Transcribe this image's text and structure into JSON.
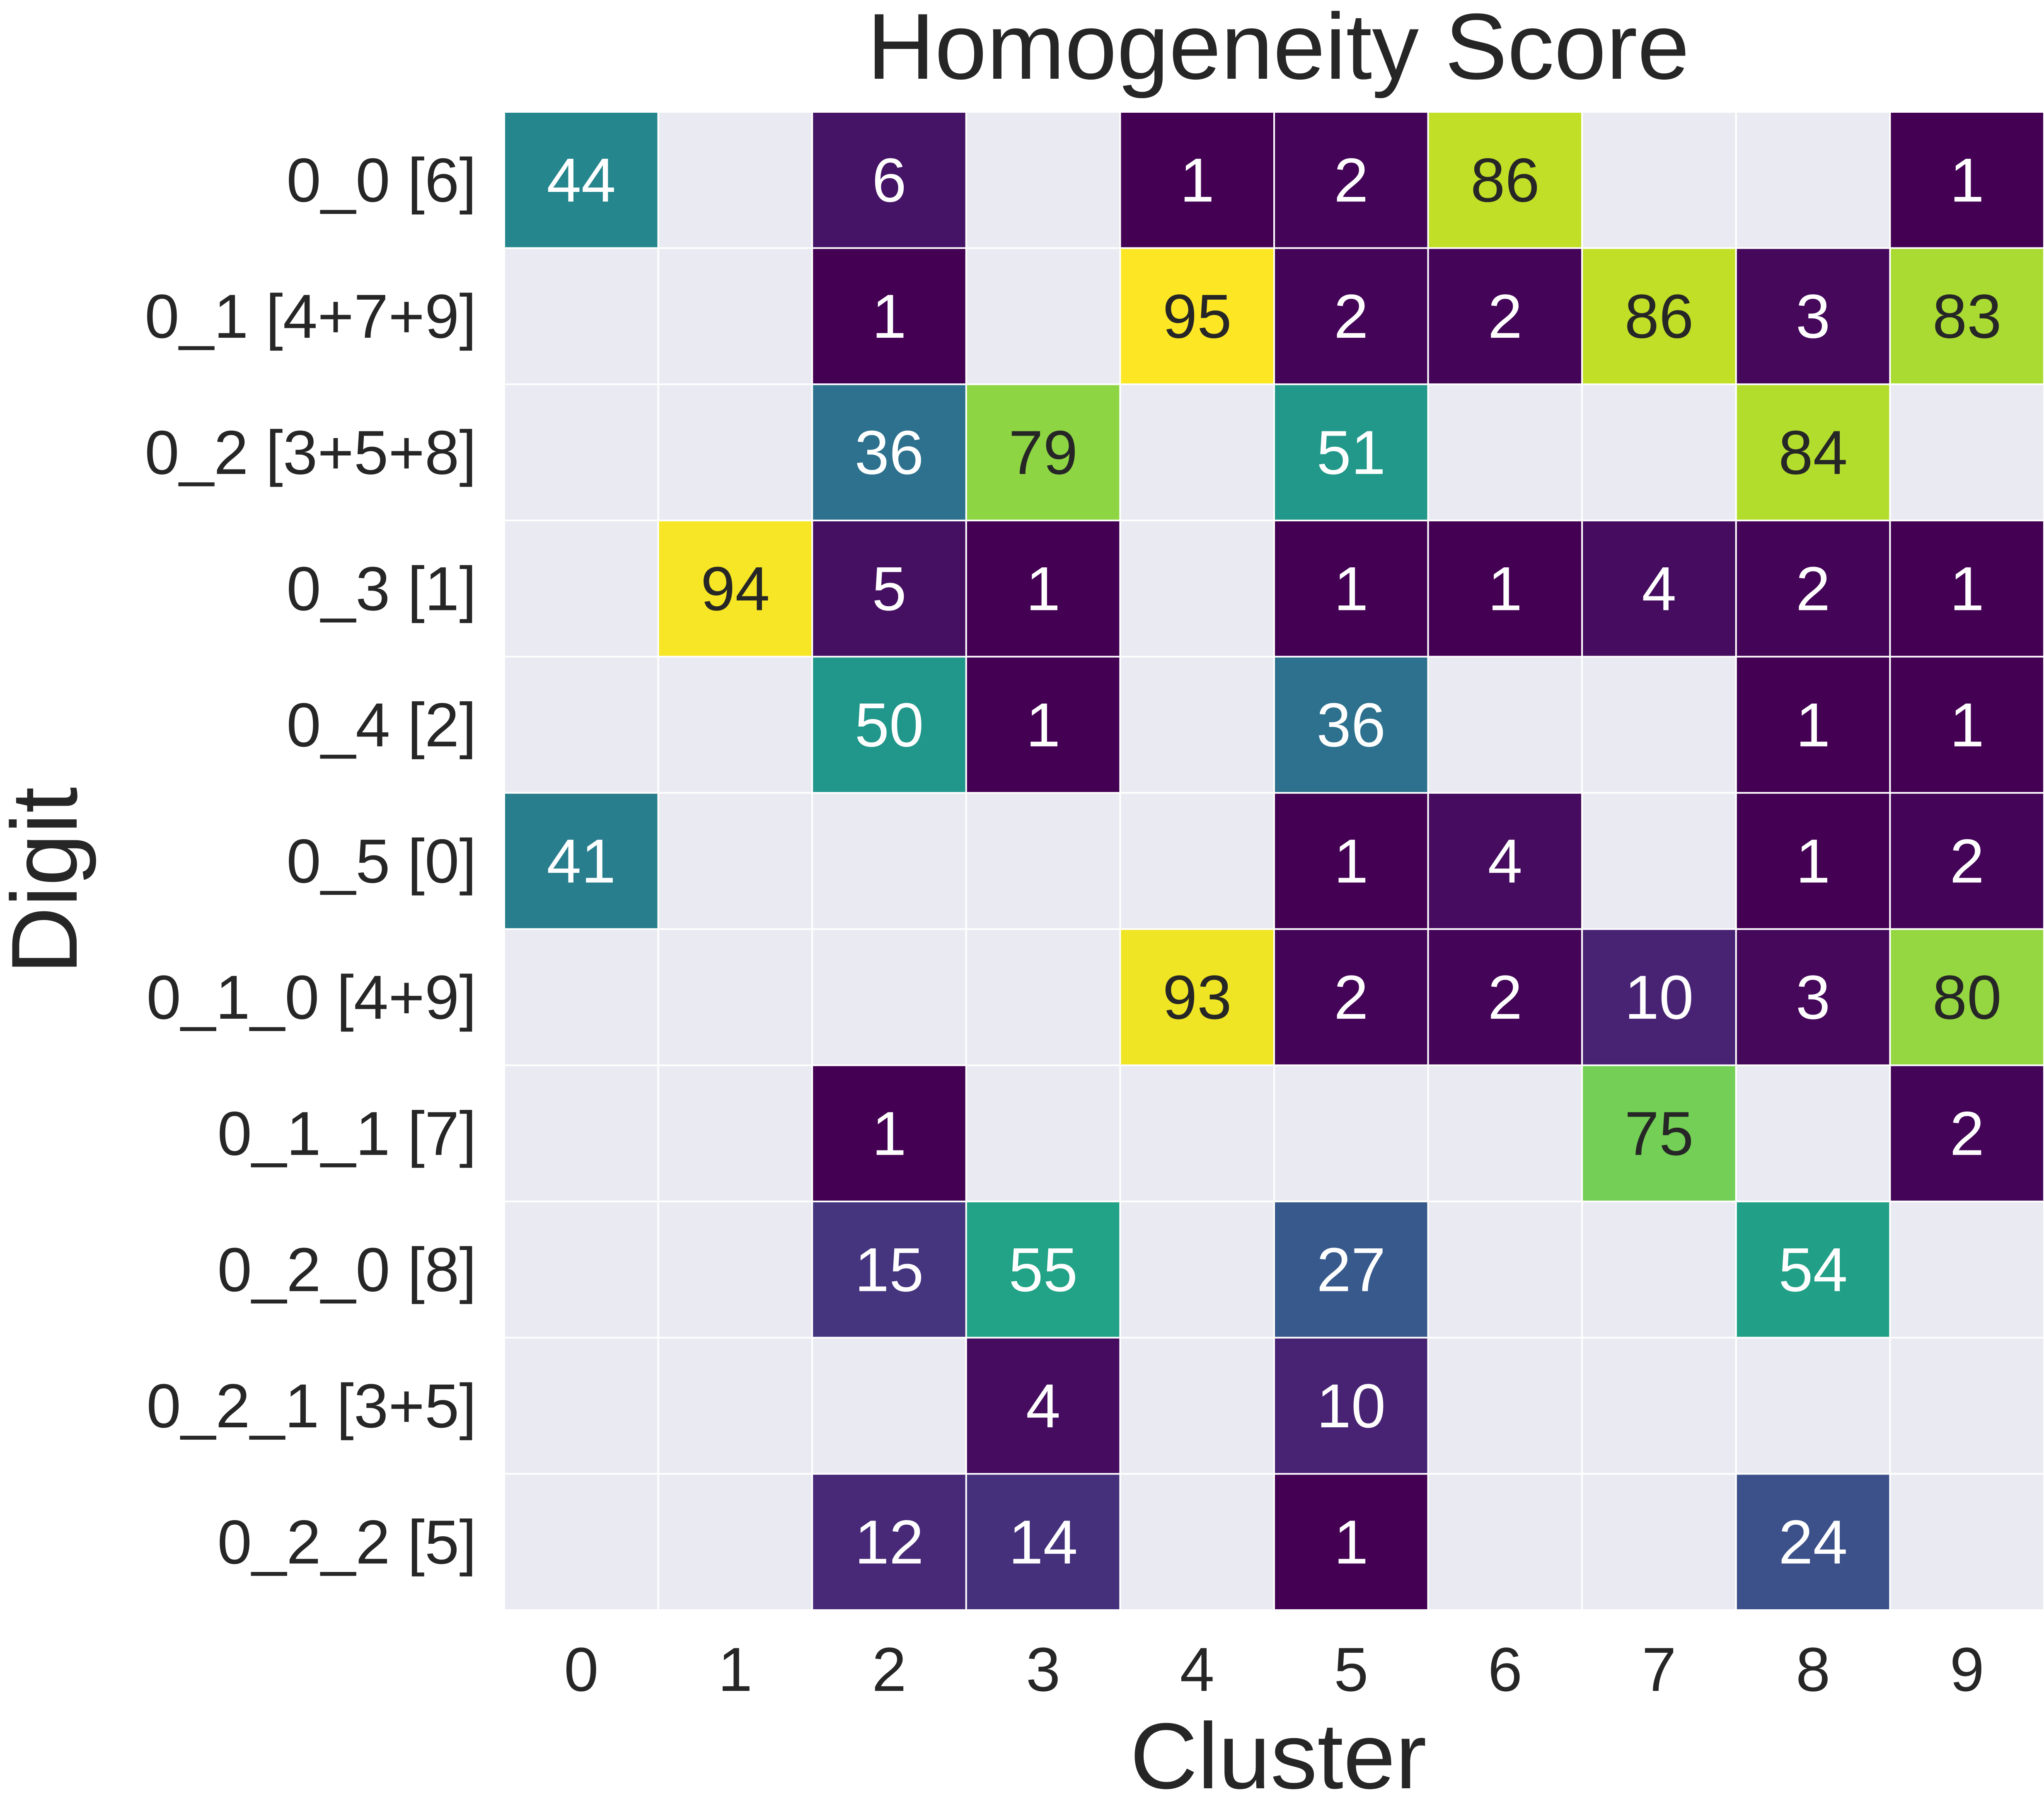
{
  "chart_data": {
    "type": "heatmap",
    "title": "Homogeneity Score",
    "xlabel": "Cluster",
    "ylabel": "Digit",
    "x_categories": [
      "0",
      "1",
      "2",
      "3",
      "4",
      "5",
      "6",
      "7",
      "8",
      "9"
    ],
    "y_categories": [
      "0_0 [6]",
      "0_1 [4+7+9]",
      "0_2 [3+5+8]",
      "0_3 [1]",
      "0_4 [2]",
      "0_5 [0]",
      "0_1_0 [4+9]",
      "0_1_1 [7]",
      "0_2_0 [8]",
      "0_2_1 [3+5]",
      "0_2_2 [5]"
    ],
    "values": [
      [
        44,
        null,
        6,
        null,
        1,
        2,
        86,
        null,
        null,
        1
      ],
      [
        null,
        null,
        1,
        null,
        95,
        2,
        2,
        86,
        3,
        83
      ],
      [
        null,
        null,
        36,
        79,
        null,
        51,
        null,
        null,
        84,
        null
      ],
      [
        null,
        94,
        5,
        1,
        null,
        1,
        1,
        4,
        2,
        1
      ],
      [
        null,
        null,
        50,
        1,
        null,
        36,
        null,
        null,
        1,
        1
      ],
      [
        41,
        null,
        null,
        null,
        null,
        1,
        4,
        null,
        1,
        2
      ],
      [
        null,
        null,
        null,
        null,
        93,
        2,
        2,
        10,
        3,
        80
      ],
      [
        null,
        null,
        1,
        null,
        null,
        null,
        null,
        75,
        null,
        2
      ],
      [
        null,
        null,
        15,
        55,
        null,
        27,
        null,
        null,
        54,
        null
      ],
      [
        null,
        null,
        null,
        4,
        null,
        10,
        null,
        null,
        null,
        null
      ],
      [
        null,
        null,
        12,
        14,
        null,
        1,
        null,
        null,
        24,
        null
      ]
    ],
    "value_range": [
      1,
      95
    ],
    "colormap": "viridis",
    "missing_color": "#EAEAF2",
    "grid": true
  }
}
